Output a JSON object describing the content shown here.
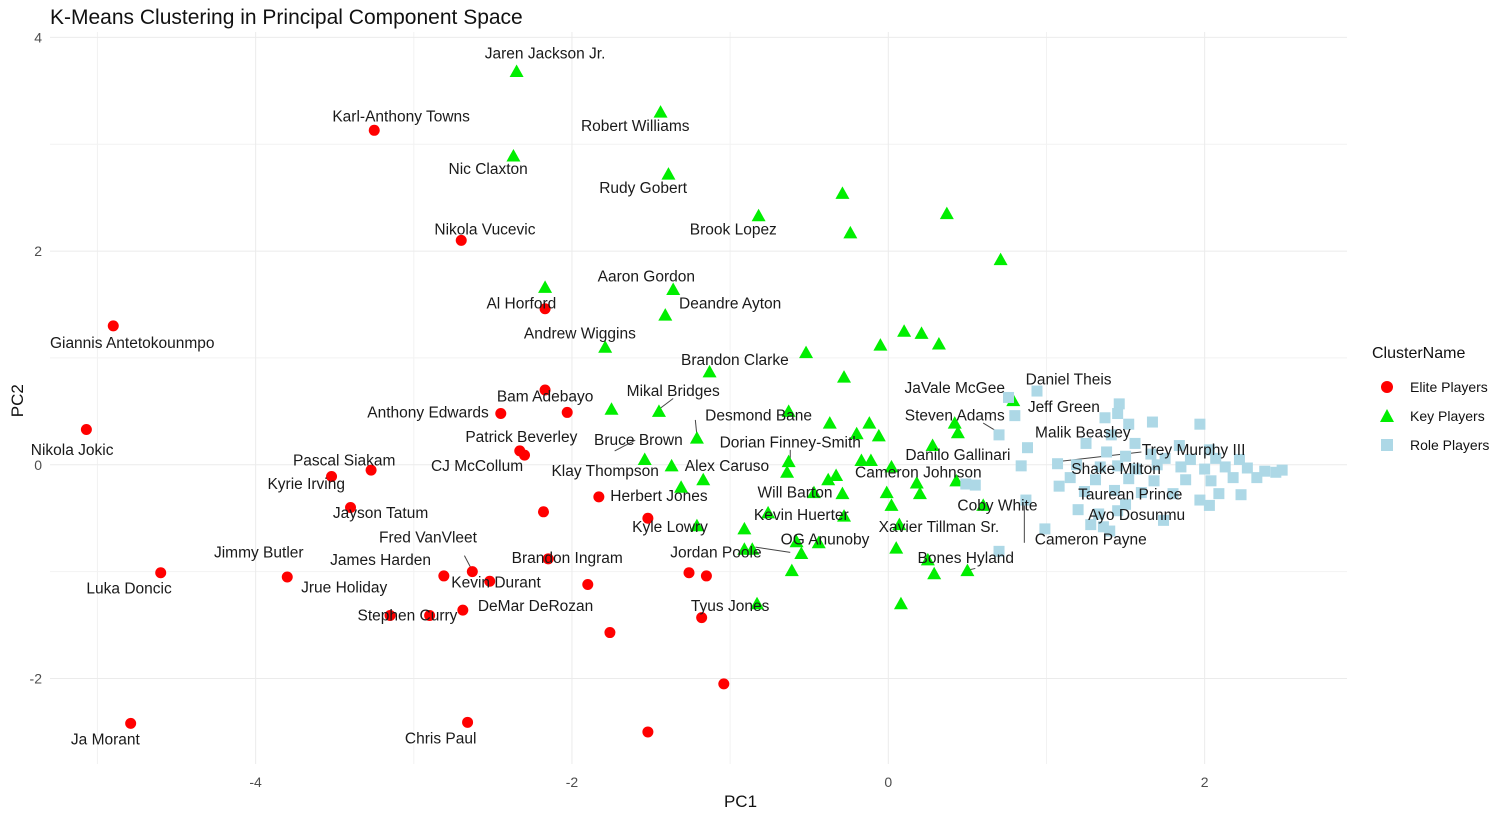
{
  "chart_data": {
    "type": "scatter",
    "title": "K-Means Clustering in Principal Component Space",
    "xlabel": "PC1",
    "ylabel": "PC2",
    "xlim": [
      -5.3,
      2.9
    ],
    "ylim": [
      -2.8,
      4.05
    ],
    "x_ticks": [
      -4,
      -2,
      0,
      2
    ],
    "y_ticks": [
      -2,
      0,
      2,
      4
    ],
    "grid": true,
    "legend": {
      "title": "ClusterName",
      "position": "right"
    },
    "series": [
      {
        "name": "Elite Players",
        "color": "#ff0000",
        "marker": "circle",
        "points": [
          {
            "x": -3.25,
            "y": 3.13
          },
          {
            "x": -2.7,
            "y": 2.1
          },
          {
            "x": -4.9,
            "y": 1.3
          },
          {
            "x": -2.17,
            "y": 1.46
          },
          {
            "x": -2.17,
            "y": 0.7
          },
          {
            "x": -2.03,
            "y": 0.49
          },
          {
            "x": -2.45,
            "y": 0.48
          },
          {
            "x": -5.07,
            "y": 0.33
          },
          {
            "x": -2.33,
            "y": 0.13
          },
          {
            "x": -2.3,
            "y": 0.09
          },
          {
            "x": -3.27,
            "y": -0.05
          },
          {
            "x": -3.52,
            "y": -0.11
          },
          {
            "x": -3.4,
            "y": -0.4
          },
          {
            "x": -1.83,
            "y": -0.3
          },
          {
            "x": -2.18,
            "y": -0.44
          },
          {
            "x": -1.52,
            "y": -0.5
          },
          {
            "x": -2.15,
            "y": -0.88
          },
          {
            "x": -4.6,
            "y": -1.01
          },
          {
            "x": -3.8,
            "y": -1.05
          },
          {
            "x": -2.81,
            "y": -1.04
          },
          {
            "x": -2.63,
            "y": -1.0
          },
          {
            "x": -2.52,
            "y": -1.09
          },
          {
            "x": -1.9,
            "y": -1.12
          },
          {
            "x": -1.26,
            "y": -1.01
          },
          {
            "x": -1.15,
            "y": -1.04
          },
          {
            "x": -3.15,
            "y": -1.41
          },
          {
            "x": -2.9,
            "y": -1.41
          },
          {
            "x": -2.69,
            "y": -1.36
          },
          {
            "x": -1.18,
            "y": -1.43
          },
          {
            "x": -1.76,
            "y": -1.57
          },
          {
            "x": -1.04,
            "y": -2.05
          },
          {
            "x": -4.79,
            "y": -2.42
          },
          {
            "x": -2.66,
            "y": -2.41
          },
          {
            "x": -1.52,
            "y": -2.5
          }
        ]
      },
      {
        "name": "Key Players",
        "color": "#00ee00",
        "marker": "triangle",
        "points": [
          {
            "x": -2.35,
            "y": 3.68
          },
          {
            "x": -1.44,
            "y": 3.3
          },
          {
            "x": -2.37,
            "y": 2.89
          },
          {
            "x": -1.39,
            "y": 2.72
          },
          {
            "x": -0.29,
            "y": 2.54
          },
          {
            "x": 0.37,
            "y": 2.35
          },
          {
            "x": -0.82,
            "y": 2.33
          },
          {
            "x": -0.24,
            "y": 2.17
          },
          {
            "x": 0.71,
            "y": 1.92
          },
          {
            "x": -2.17,
            "y": 1.66
          },
          {
            "x": -1.36,
            "y": 1.64
          },
          {
            "x": -1.41,
            "y": 1.4
          },
          {
            "x": 0.1,
            "y": 1.25
          },
          {
            "x": 0.21,
            "y": 1.23
          },
          {
            "x": 0.32,
            "y": 1.13
          },
          {
            "x": -0.05,
            "y": 1.12
          },
          {
            "x": -1.79,
            "y": 1.1
          },
          {
            "x": -0.52,
            "y": 1.05
          },
          {
            "x": -1.13,
            "y": 0.87
          },
          {
            "x": -0.28,
            "y": 0.82
          },
          {
            "x": 0.79,
            "y": 0.6
          },
          {
            "x": -1.75,
            "y": 0.52
          },
          {
            "x": -1.45,
            "y": 0.5
          },
          {
            "x": -0.63,
            "y": 0.5
          },
          {
            "x": -0.37,
            "y": 0.39
          },
          {
            "x": -0.12,
            "y": 0.39
          },
          {
            "x": 0.42,
            "y": 0.39
          },
          {
            "x": -0.2,
            "y": 0.29
          },
          {
            "x": -0.06,
            "y": 0.27
          },
          {
            "x": -1.21,
            "y": 0.25
          },
          {
            "x": 0.28,
            "y": 0.18
          },
          {
            "x": 0.44,
            "y": 0.3
          },
          {
            "x": -1.54,
            "y": 0.05
          },
          {
            "x": -0.17,
            "y": 0.04
          },
          {
            "x": -0.11,
            "y": 0.04
          },
          {
            "x": -0.63,
            "y": 0.03
          },
          {
            "x": 0.02,
            "y": -0.02
          },
          {
            "x": -1.37,
            "y": -0.01
          },
          {
            "x": -0.64,
            "y": -0.07
          },
          {
            "x": -0.38,
            "y": -0.14
          },
          {
            "x": -0.33,
            "y": -0.1
          },
          {
            "x": -1.17,
            "y": -0.14
          },
          {
            "x": -1.31,
            "y": -0.21
          },
          {
            "x": 0.18,
            "y": -0.17
          },
          {
            "x": 0.2,
            "y": -0.27
          },
          {
            "x": 0.43,
            "y": -0.15
          },
          {
            "x": -0.29,
            "y": -0.27
          },
          {
            "x": -0.47,
            "y": -0.26
          },
          {
            "x": -0.01,
            "y": -0.26
          },
          {
            "x": -0.76,
            "y": -0.45
          },
          {
            "x": -0.28,
            "y": -0.48
          },
          {
            "x": 0.02,
            "y": -0.38
          },
          {
            "x": 0.6,
            "y": -0.38
          },
          {
            "x": -1.21,
            "y": -0.57
          },
          {
            "x": 0.07,
            "y": -0.56
          },
          {
            "x": -0.91,
            "y": -0.6
          },
          {
            "x": -0.58,
            "y": -0.72
          },
          {
            "x": -0.44,
            "y": -0.73
          },
          {
            "x": -0.91,
            "y": -0.79
          },
          {
            "x": -0.86,
            "y": -0.79
          },
          {
            "x": -0.55,
            "y": -0.83
          },
          {
            "x": 0.05,
            "y": -0.78
          },
          {
            "x": 0.25,
            "y": -0.89
          },
          {
            "x": -0.61,
            "y": -0.99
          },
          {
            "x": 0.5,
            "y": -0.99
          },
          {
            "x": 0.29,
            "y": -1.02
          },
          {
            "x": -0.83,
            "y": -1.3
          },
          {
            "x": 0.08,
            "y": -1.3
          }
        ]
      },
      {
        "name": "Role Players",
        "color": "#add8e6",
        "marker": "square",
        "points": [
          {
            "x": 0.94,
            "y": 0.69
          },
          {
            "x": 0.76,
            "y": 0.63
          },
          {
            "x": 1.46,
            "y": 0.57
          },
          {
            "x": 1.45,
            "y": 0.48
          },
          {
            "x": 0.8,
            "y": 0.46
          },
          {
            "x": 1.37,
            "y": 0.44
          },
          {
            "x": 1.67,
            "y": 0.4
          },
          {
            "x": 1.52,
            "y": 0.38
          },
          {
            "x": 1.97,
            "y": 0.38
          },
          {
            "x": 1.41,
            "y": 0.28
          },
          {
            "x": 0.7,
            "y": 0.28
          },
          {
            "x": 1.25,
            "y": 0.2
          },
          {
            "x": 1.56,
            "y": 0.2
          },
          {
            "x": 1.84,
            "y": 0.18
          },
          {
            "x": 2.03,
            "y": 0.14
          },
          {
            "x": 0.88,
            "y": 0.16
          },
          {
            "x": 1.38,
            "y": 0.12
          },
          {
            "x": 1.5,
            "y": 0.08
          },
          {
            "x": 1.66,
            "y": 0.1
          },
          {
            "x": 1.75,
            "y": 0.06
          },
          {
            "x": 1.91,
            "y": 0.05
          },
          {
            "x": 2.07,
            "y": 0.06
          },
          {
            "x": 2.22,
            "y": 0.05
          },
          {
            "x": 1.07,
            "y": 0.01
          },
          {
            "x": 1.19,
            "y": 0.0
          },
          {
            "x": 1.34,
            "y": -0.02
          },
          {
            "x": 1.45,
            "y": -0.01
          },
          {
            "x": 1.57,
            "y": -0.04
          },
          {
            "x": 1.7,
            "y": 0.0
          },
          {
            "x": 1.85,
            "y": -0.02
          },
          {
            "x": 2.0,
            "y": -0.04
          },
          {
            "x": 2.13,
            "y": -0.02
          },
          {
            "x": 2.27,
            "y": -0.03
          },
          {
            "x": 2.38,
            "y": -0.06
          },
          {
            "x": 2.45,
            "y": -0.07
          },
          {
            "x": 2.49,
            "y": -0.05
          },
          {
            "x": 0.84,
            "y": -0.01
          },
          {
            "x": 1.15,
            "y": -0.12
          },
          {
            "x": 1.31,
            "y": -0.14
          },
          {
            "x": 1.52,
            "y": -0.13
          },
          {
            "x": 1.68,
            "y": -0.15
          },
          {
            "x": 1.88,
            "y": -0.14
          },
          {
            "x": 2.04,
            "y": -0.15
          },
          {
            "x": 2.18,
            "y": -0.12
          },
          {
            "x": 2.33,
            "y": -0.12
          },
          {
            "x": 0.49,
            "y": -0.18
          },
          {
            "x": 0.55,
            "y": -0.19
          },
          {
            "x": 1.08,
            "y": -0.2
          },
          {
            "x": 1.24,
            "y": -0.25
          },
          {
            "x": 1.43,
            "y": -0.24
          },
          {
            "x": 1.6,
            "y": -0.26
          },
          {
            "x": 1.8,
            "y": -0.27
          },
          {
            "x": 2.09,
            "y": -0.27
          },
          {
            "x": 2.23,
            "y": -0.28
          },
          {
            "x": 0.87,
            "y": -0.33
          },
          {
            "x": 1.97,
            "y": -0.33
          },
          {
            "x": 2.03,
            "y": -0.38
          },
          {
            "x": 1.2,
            "y": -0.42
          },
          {
            "x": 1.33,
            "y": -0.46
          },
          {
            "x": 1.45,
            "y": -0.43
          },
          {
            "x": 1.28,
            "y": -0.56
          },
          {
            "x": 1.36,
            "y": -0.58
          },
          {
            "x": 1.4,
            "y": -0.62
          },
          {
            "x": 1.74,
            "y": -0.52
          },
          {
            "x": 1.5,
            "y": -0.37
          },
          {
            "x": 0.99,
            "y": -0.6
          },
          {
            "x": 0.7,
            "y": -0.81
          }
        ]
      }
    ],
    "labels": [
      {
        "text": "Jaren Jackson Jr.",
        "x": -2.17,
        "y": 3.85
      },
      {
        "text": "Karl-Anthony Towns",
        "x": -3.08,
        "y": 3.26
      },
      {
        "text": "Robert Williams",
        "x": -1.6,
        "y": 3.17
      },
      {
        "text": "Nic Claxton",
        "x": -2.53,
        "y": 2.77
      },
      {
        "text": "Rudy Gobert",
        "x": -1.55,
        "y": 2.59
      },
      {
        "text": "Nikola Vucevic",
        "x": -2.55,
        "y": 2.2
      },
      {
        "text": "Brook Lopez",
        "x": -0.98,
        "y": 2.2
      },
      {
        "text": "Aaron Gordon",
        "x": -1.53,
        "y": 1.76
      },
      {
        "text": "Al Horford",
        "x": -2.32,
        "y": 1.51
      },
      {
        "text": "Deandre Ayton",
        "x": -1.0,
        "y": 1.51
      },
      {
        "text": "Giannis Antetokounmpo",
        "x": -4.78,
        "y": 1.14
      },
      {
        "text": "Andrew Wiggins",
        "x": -1.95,
        "y": 1.23
      },
      {
        "text": "Brandon Clarke",
        "x": -0.97,
        "y": 0.98
      },
      {
        "text": "JaVale McGee",
        "x": 0.42,
        "y": 0.72
      },
      {
        "text": "Daniel Theis",
        "x": 1.14,
        "y": 0.8
      },
      {
        "text": "Mikal Bridges",
        "x": -1.36,
        "y": 0.69
      },
      {
        "text": "Bam Adebayo",
        "x": -2.17,
        "y": 0.64
      },
      {
        "text": "Jeff Green",
        "x": 1.11,
        "y": 0.54
      },
      {
        "text": "Anthony Edwards",
        "x": -2.91,
        "y": 0.49
      },
      {
        "text": "Desmond Bane",
        "x": -0.82,
        "y": 0.46
      },
      {
        "text": "Steven Adams",
        "x": 0.42,
        "y": 0.46
      },
      {
        "text": "Malik Beasley",
        "x": 1.23,
        "y": 0.3
      },
      {
        "text": "Patrick Beverley",
        "x": -2.32,
        "y": 0.26
      },
      {
        "text": "Bruce Brown",
        "x": -1.58,
        "y": 0.23
      },
      {
        "text": "Dorian Finney-Smith",
        "x": -0.62,
        "y": 0.21
      },
      {
        "text": "Trey Murphy III",
        "x": 1.93,
        "y": 0.14
      },
      {
        "text": "Danilo Gallinari",
        "x": 0.44,
        "y": 0.09
      },
      {
        "text": "Pascal Siakam",
        "x": -3.44,
        "y": 0.04
      },
      {
        "text": "CJ McCollum",
        "x": -2.6,
        "y": -0.01
      },
      {
        "text": "Alex Caruso",
        "x": -1.02,
        "y": -0.01
      },
      {
        "text": "Shake Milton",
        "x": 1.44,
        "y": -0.04
      },
      {
        "text": "Klay Thompson",
        "x": -1.79,
        "y": -0.06
      },
      {
        "text": "Cameron Johnson",
        "x": 0.19,
        "y": -0.07
      },
      {
        "text": "Kyrie Irving",
        "x": -3.68,
        "y": -0.18
      },
      {
        "text": "Will Barton",
        "x": -0.59,
        "y": -0.26
      },
      {
        "text": "Herbert Jones",
        "x": -1.45,
        "y": -0.29
      },
      {
        "text": "Taurean Prince",
        "x": 1.53,
        "y": -0.28
      },
      {
        "text": "Coby White",
        "x": 0.69,
        "y": -0.38
      },
      {
        "text": "Jayson Tatum",
        "x": -3.21,
        "y": -0.45
      },
      {
        "text": "Kevin Huerter",
        "x": -0.55,
        "y": -0.47
      },
      {
        "text": "Ayo Dosunmu",
        "x": 1.57,
        "y": -0.47
      },
      {
        "text": "Kyle Lowry",
        "x": -1.38,
        "y": -0.58
      },
      {
        "text": "Xavier Tillman Sr.",
        "x": 0.32,
        "y": -0.58
      },
      {
        "text": "Cameron Payne",
        "x": 1.28,
        "y": -0.7
      },
      {
        "text": "OG Anunoby",
        "x": -0.4,
        "y": -0.7
      },
      {
        "text": "Fred VanVleet",
        "x": -2.91,
        "y": -0.68
      },
      {
        "text": "Jimmy Butler",
        "x": -3.98,
        "y": -0.82
      },
      {
        "text": "Jordan Poole",
        "x": -1.09,
        "y": -0.82
      },
      {
        "text": "Bones Hyland",
        "x": 0.49,
        "y": -0.87
      },
      {
        "text": "Brandon Ingram",
        "x": -2.03,
        "y": -0.87
      },
      {
        "text": "James Harden",
        "x": -3.21,
        "y": -0.89
      },
      {
        "text": "Luka Doncic",
        "x": -4.8,
        "y": -1.16
      },
      {
        "text": "Kevin Durant",
        "x": -2.48,
        "y": -1.1
      },
      {
        "text": "Jrue Holiday",
        "x": -3.44,
        "y": -1.15
      },
      {
        "text": "DeMar DeRozan",
        "x": -2.23,
        "y": -1.32
      },
      {
        "text": "Tyus Jones",
        "x": -1.0,
        "y": -1.32
      },
      {
        "text": "Stephen Curry",
        "x": -3.04,
        "y": -1.41
      },
      {
        "text": "Nikola Jokic",
        "x": -5.16,
        "y": 0.14
      },
      {
        "text": "Ja Morant",
        "x": -4.95,
        "y": -2.57
      },
      {
        "text": "Chris Paul",
        "x": -2.83,
        "y": -2.56
      }
    ]
  }
}
